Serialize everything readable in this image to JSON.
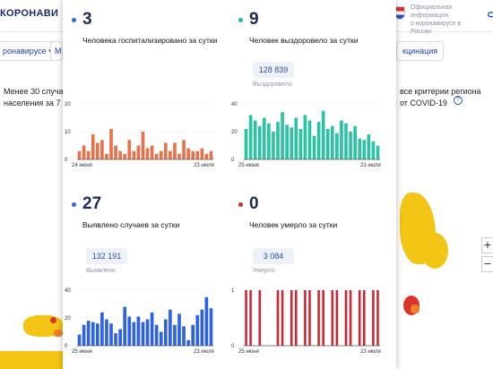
{
  "background": {
    "logo_prefix": "",
    "logo_text": "КОРОНАВИ",
    "official_line1": "Официальная информация",
    "official_line2": "о коронавирусе в России",
    "pill_left": "ронавирусе ▾",
    "pill_m": "М",
    "pill_right": "кцинация",
    "text_left_1": "Менее 30 случаев",
    "text_left_2": "населения за 7 су",
    "text_right_1": "все критерии региона",
    "text_right_2": "от COVID-19",
    "zoom_in": "+",
    "zoom_out": "−"
  },
  "panels": [
    {
      "number": "3",
      "description": "Человека госпитализировано за сутки",
      "total": "",
      "total_label": "",
      "dot_color": "#2c67d8",
      "bar_color": "#e8714a",
      "y_max": 20,
      "y_ticks": [
        "20",
        "10",
        "0"
      ],
      "x_start": "24 июня",
      "x_end": "23 июля",
      "chart_values": [
        3,
        5,
        3,
        9,
        6,
        7,
        2,
        11,
        5,
        3,
        2,
        7,
        3,
        5,
        10,
        4,
        5,
        2,
        3,
        6,
        3,
        6,
        2,
        7,
        4,
        3,
        3,
        4,
        2,
        3
      ]
    },
    {
      "number": "9",
      "description": "Человек выздоровело за сутки",
      "total": "128 839",
      "total_label": "Выздоровело",
      "dot_color": "#21b79b",
      "bar_color": "#2cc3a4",
      "y_max": 40,
      "y_ticks": [
        "40",
        "20",
        "0"
      ],
      "x_start": "25 июня",
      "x_end": "23 июля",
      "chart_values": [
        22,
        32,
        28,
        24,
        30,
        26,
        20,
        27,
        34,
        25,
        23,
        30,
        22,
        32,
        28,
        17,
        27,
        35,
        22,
        24,
        19,
        28,
        26,
        20,
        24,
        15,
        14,
        18,
        13,
        10
      ]
    },
    {
      "number": "27",
      "description": "Выявлено случаев за сутки",
      "total": "132 191",
      "total_label": "Выявлено",
      "dot_color": "#2c67d8",
      "bar_color": "#2d61e6",
      "y_max": 40,
      "y_ticks": [
        "40",
        "20",
        "0"
      ],
      "x_start": "25 июня",
      "x_end": "23 июля",
      "chart_values": [
        8,
        15,
        18,
        17,
        16,
        24,
        19,
        16,
        9,
        12,
        28,
        21,
        17,
        21,
        17,
        19,
        24,
        15,
        10,
        19,
        26,
        15,
        23,
        14,
        4,
        15,
        22,
        26,
        35,
        27
      ]
    },
    {
      "number": "0",
      "description": "Человек умерло за сутки",
      "total": "3 084",
      "total_label": "Умерло",
      "dot_color": "#c9332e",
      "bar_color": "#cf2331",
      "y_max": 1,
      "y_ticks": [
        "1",
        "0"
      ],
      "x_start": "25 июня",
      "x_end": "23 июля",
      "chart_values": [
        1,
        1,
        0,
        1,
        0,
        0,
        0,
        1,
        1,
        0,
        1,
        1,
        0,
        1,
        1,
        0,
        1,
        1,
        0,
        1,
        1,
        0,
        1,
        1,
        0,
        1,
        1,
        0,
        1,
        1
      ]
    }
  ]
}
